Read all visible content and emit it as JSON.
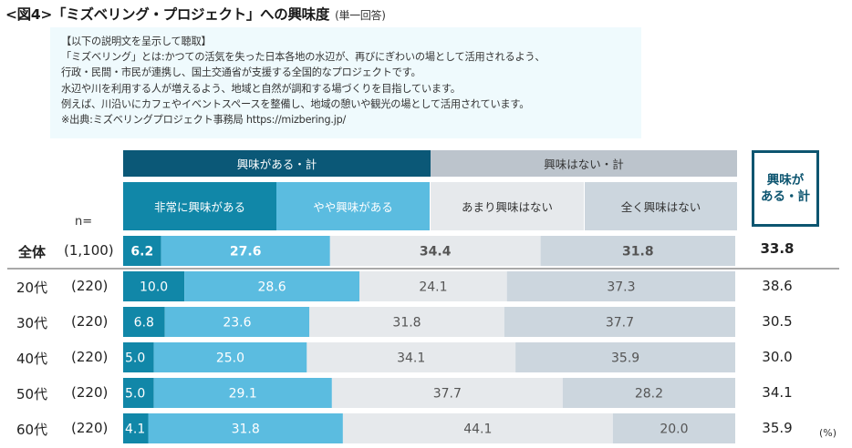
{
  "title": {
    "main": "<図4>「ミズベリング・プロジェクト」への興味度",
    "sub": "(単一回答)"
  },
  "description": {
    "lines": [
      "【以下の説明文を呈示して聴取】",
      "「ミズベリング」とは:かつての活気を失った日本各地の水辺が、再びにぎわいの場として活用されるよう、",
      "行政・民間・市民が連携し、国土交通省が支援する全国的なプロジェクトです。",
      "水辺や川を利用する人が増えるよう、地域と自然が調和する場づくりを目指しています。",
      "例えば、川沿いにカフェやイベントスペースを整備し、地域の憩いや観光の場として活用されています。",
      "※出典:ミズベリングプロジェクト事務局  https://mizbering.jp/"
    ]
  },
  "header": {
    "group_interested": "興味がある・計",
    "group_not_interested": "興味はない・計",
    "n_label": "n=",
    "badge_line1": "興味が",
    "badge_line2": "ある・計",
    "unit": "(%)"
  },
  "colors": {
    "very": "#1187a8",
    "somewhat": "#5bbce0",
    "not_much": "#e6e9ec",
    "not_at_all": "#ccd6de",
    "group_interested": "#0b5877",
    "group_not_interested": "#bcc4cc",
    "badge": "#0d5570"
  },
  "chart_data": {
    "type": "bar",
    "orientation": "horizontal-stacked-100",
    "title": "「ミズベリング・プロジェクト」への興味度",
    "unit": "%",
    "series": [
      {
        "name": "非常に興味がある",
        "values": [
          6.2,
          10.0,
          6.8,
          5.0,
          5.0,
          4.1
        ]
      },
      {
        "name": "やや興味がある",
        "values": [
          27.6,
          28.6,
          23.6,
          25.0,
          29.1,
          31.8
        ]
      },
      {
        "name": "あまり興味はない",
        "values": [
          34.4,
          24.1,
          31.8,
          34.1,
          37.7,
          44.1
        ]
      },
      {
        "name": "全く興味はない",
        "values": [
          31.8,
          37.3,
          37.7,
          35.9,
          28.2,
          20.0
        ]
      }
    ],
    "categories": [
      "全体",
      "20代",
      "30代",
      "40代",
      "50代",
      "60代"
    ],
    "n": [
      "(1,100)",
      "(220)",
      "(220)",
      "(220)",
      "(220)",
      "(220)"
    ],
    "interested_total": [
      33.8,
      38.6,
      30.5,
      30.0,
      34.1,
      35.9
    ],
    "interested_total_label": "興味がある・計",
    "group_headers": [
      "興味がある・計",
      "興味はない・計"
    ],
    "group_split_percent": 50,
    "xlim": [
      0,
      100
    ]
  }
}
